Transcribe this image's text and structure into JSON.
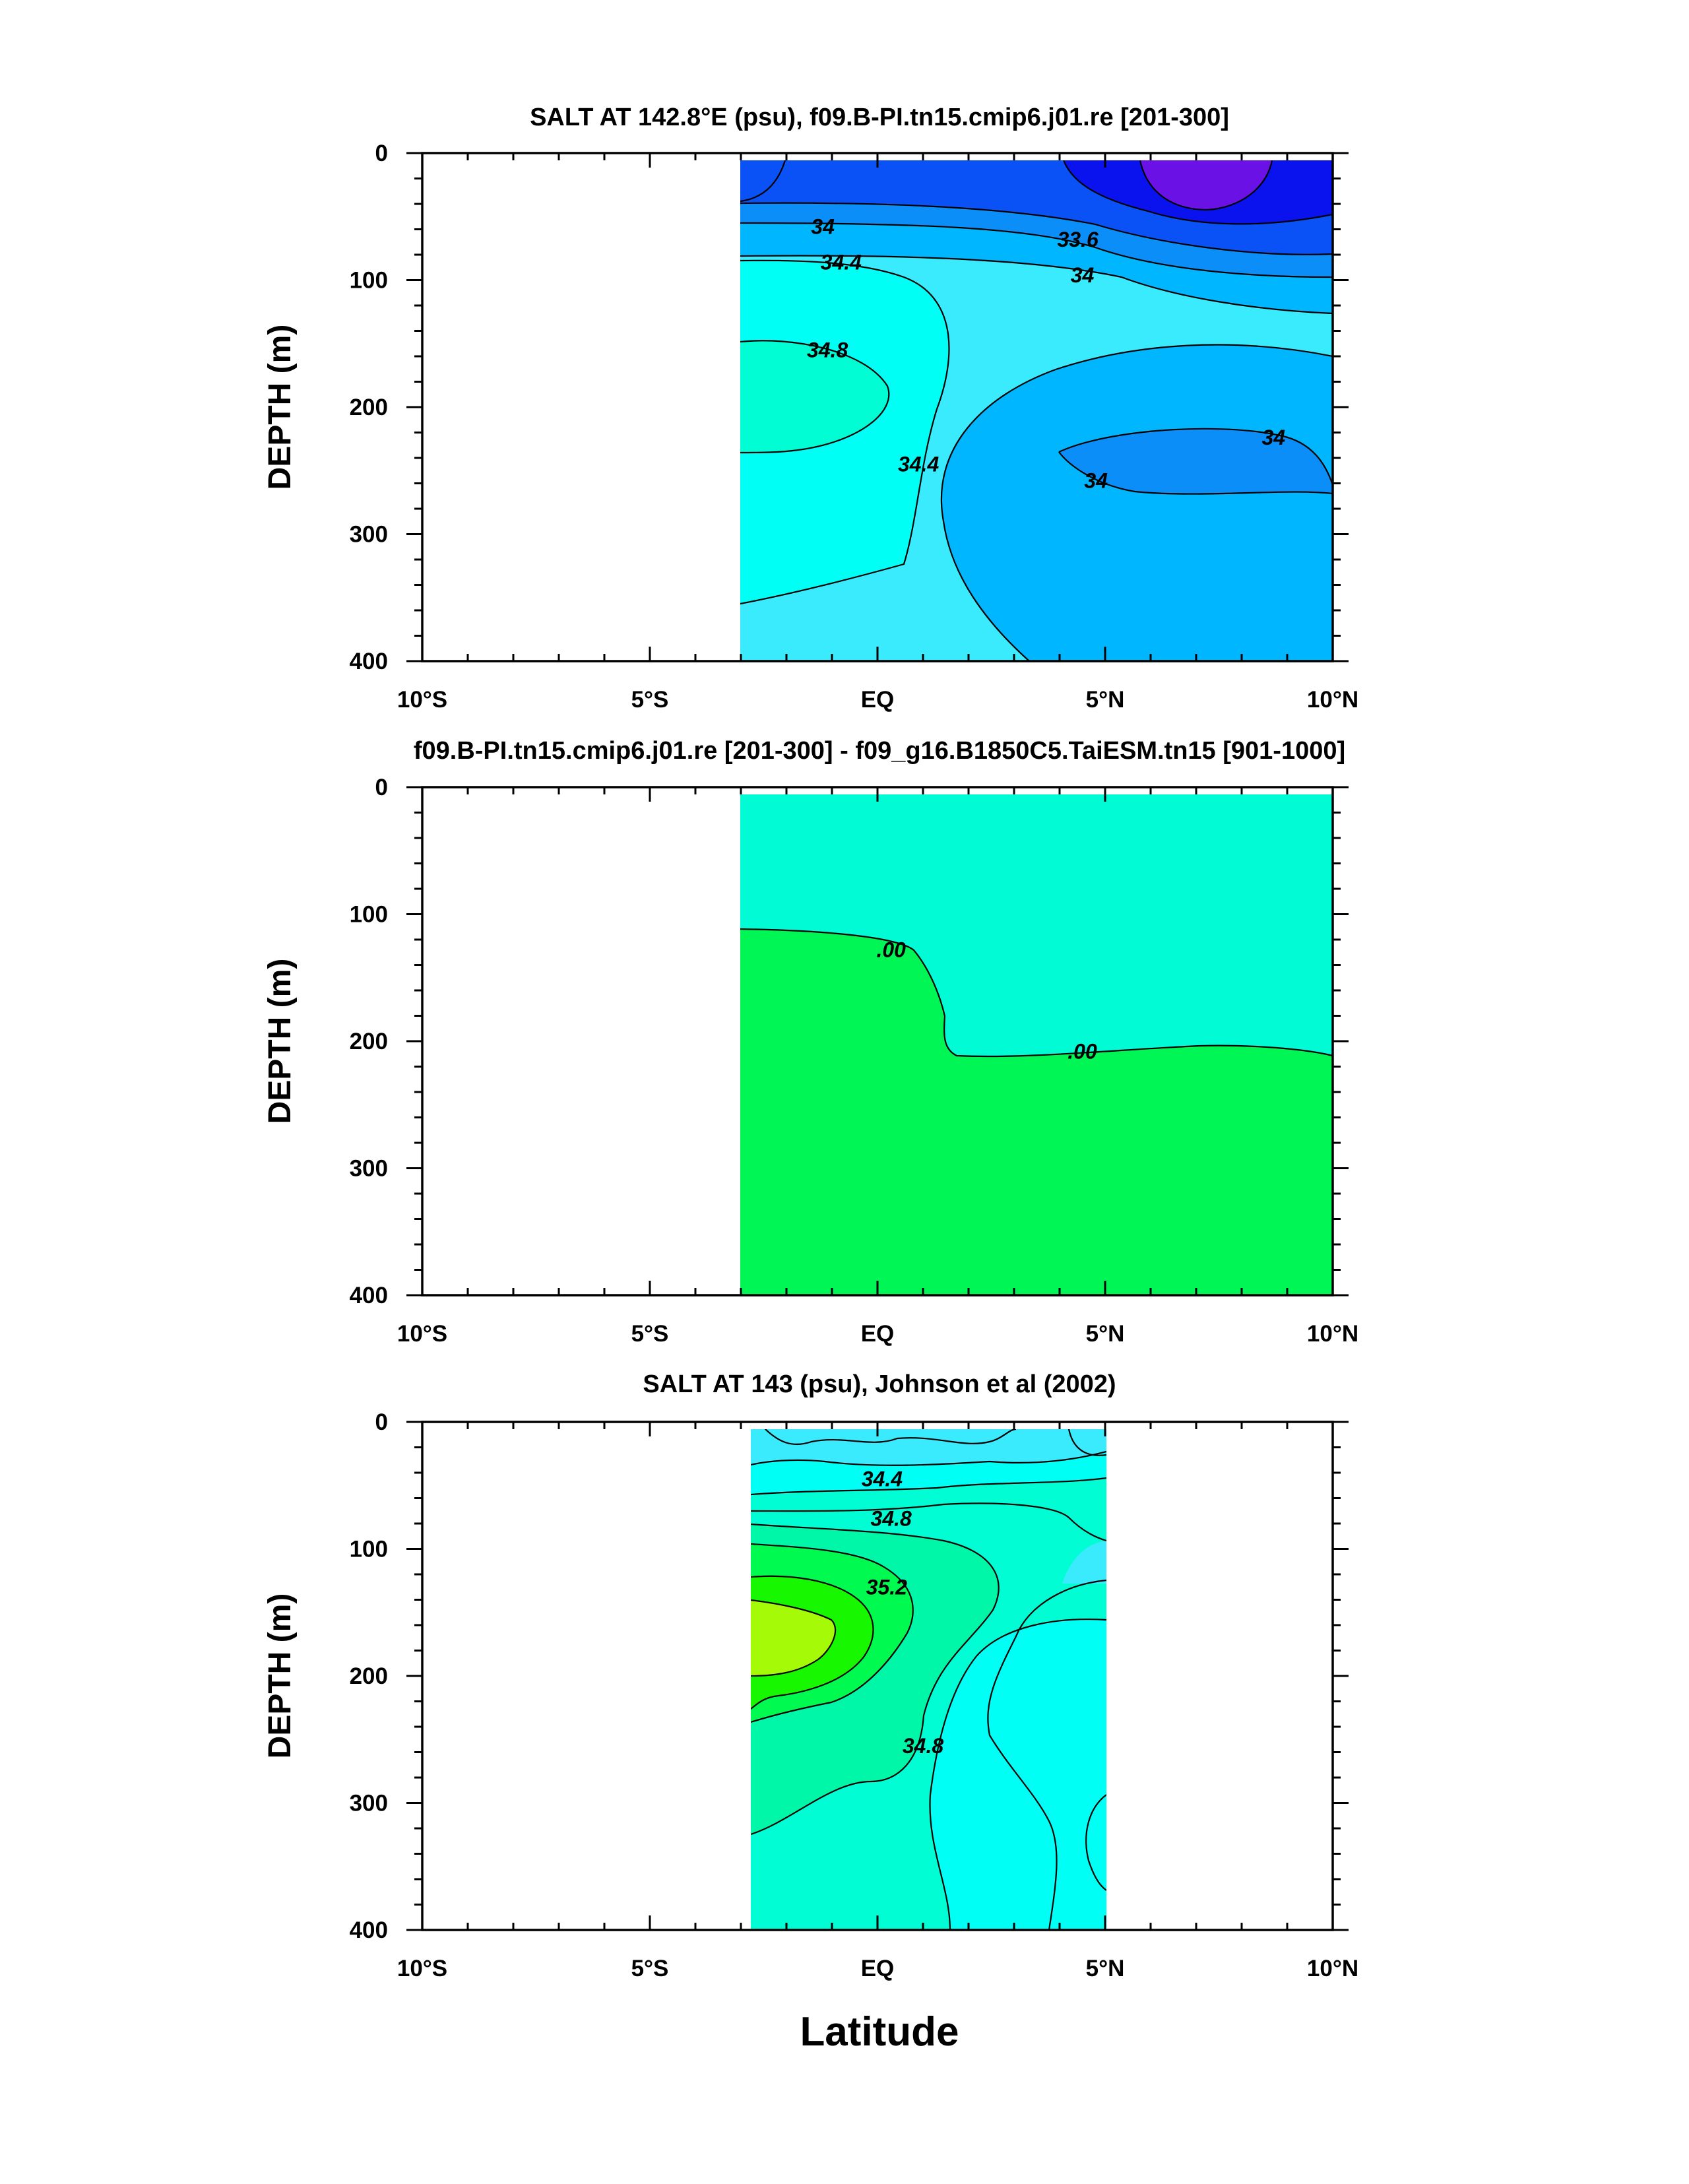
{
  "figure": {
    "xlabel": "Latitude"
  },
  "colors": {
    "sal_33_2": "#6a12e6",
    "sal_33_6": "#0a12ee",
    "sal_33_8": "#0a52f6",
    "sal_34_0": "#0c8ef8",
    "sal_34_2": "#00b6ff",
    "sal_34_4": "#3aebfe",
    "sal_34_6": "#00fff5",
    "sal_34_8": "#00fdd3",
    "sal_35_0": "#00f7a8",
    "sal_35_2": "#00fa50",
    "sal_35_4": "#17f800",
    "sal_35_6": "#a5fa08",
    "diff_pos": "#00fbd4",
    "diff_neg": "#00f655"
  },
  "chart_data": [
    {
      "type": "contour",
      "title": "SALT AT 142.8°E (psu), f09.B-PI.tn15.cmip6.j01.re [201-300]",
      "ylabel": "DEPTH (m)",
      "xlim": [
        -10,
        10
      ],
      "ylim": [
        0,
        400
      ],
      "y_reversed": true,
      "x_ticks": [
        {
          "value": -10,
          "label": "10°S"
        },
        {
          "value": -5,
          "label": "5°S"
        },
        {
          "value": 0,
          "label": "EQ"
        },
        {
          "value": 5,
          "label": "5°N"
        },
        {
          "value": 10,
          "label": "10°N"
        }
      ],
      "y_ticks": [
        0,
        100,
        200,
        300,
        400
      ],
      "data_extent": {
        "lat": [
          -3,
          10
        ],
        "depth": [
          5,
          400
        ]
      },
      "contour_labels": [
        {
          "text": "34",
          "lat": -1.2,
          "depth": 58
        },
        {
          "text": "34.4",
          "lat": -0.8,
          "depth": 86
        },
        {
          "text": "34.8",
          "lat": -1.1,
          "depth": 155
        },
        {
          "text": "34.4",
          "lat": 0.9,
          "depth": 245
        },
        {
          "text": "33.6",
          "lat": 4.4,
          "depth": 68
        },
        {
          "text": "34",
          "lat": 4.5,
          "depth": 96
        },
        {
          "text": "34",
          "lat": 8.7,
          "depth": 224
        },
        {
          "text": "34",
          "lat": 4.8,
          "depth": 258
        }
      ]
    },
    {
      "type": "contour",
      "title": "f09.B-PI.tn15.cmip6.j01.re [201-300] - f09_g16.B1850C5.TaiESM.tn15 [901-1000]",
      "ylabel": "DEPTH (m)",
      "xlim": [
        -10,
        10
      ],
      "ylim": [
        0,
        400
      ],
      "y_reversed": true,
      "x_ticks": [
        {
          "value": -10,
          "label": "10°S"
        },
        {
          "value": -5,
          "label": "5°S"
        },
        {
          "value": 0,
          "label": "EQ"
        },
        {
          "value": 5,
          "label": "5°N"
        },
        {
          "value": 10,
          "label": "10°N"
        }
      ],
      "y_ticks": [
        0,
        100,
        200,
        300,
        400
      ],
      "data_extent": {
        "lat": [
          -3,
          10
        ],
        "depth": [
          5,
          400
        ]
      },
      "contour_labels": [
        {
          "text": ".00",
          "lat": 0.3,
          "depth": 128
        },
        {
          "text": ".00",
          "lat": 4.5,
          "depth": 208
        }
      ]
    },
    {
      "type": "contour",
      "title": "SALT AT 143 (psu), Johnson et al (2002)",
      "ylabel": "DEPTH (m)",
      "xlim": [
        -10,
        10
      ],
      "ylim": [
        0,
        400
      ],
      "y_reversed": true,
      "x_ticks": [
        {
          "value": -10,
          "label": "10°S"
        },
        {
          "value": -5,
          "label": "5°S"
        },
        {
          "value": 0,
          "label": "EQ"
        },
        {
          "value": 5,
          "label": "5°N"
        },
        {
          "value": 10,
          "label": "10°N"
        }
      ],
      "y_ticks": [
        0,
        100,
        200,
        300,
        400
      ],
      "data_extent": {
        "lat": [
          -2.8,
          5
        ],
        "depth": [
          5,
          400
        ]
      },
      "contour_labels": [
        {
          "text": "34.4",
          "lat": 0.1,
          "depth": 45
        },
        {
          "text": "34.8",
          "lat": 0.3,
          "depth": 76
        },
        {
          "text": "35.2",
          "lat": 0.2,
          "depth": 130
        },
        {
          "text": "34.8",
          "lat": 1.0,
          "depth": 255
        }
      ]
    }
  ]
}
